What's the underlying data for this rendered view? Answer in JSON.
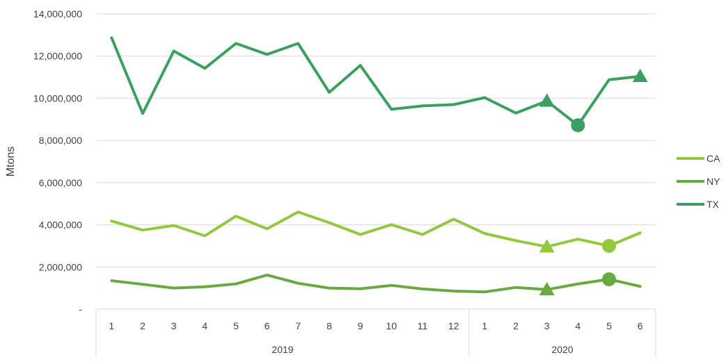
{
  "chart_data": {
    "type": "line",
    "ylabel": "Mtons",
    "ylim": [
      0,
      14000000
    ],
    "y_ticks": [
      {
        "value": 0,
        "label": "-"
      },
      {
        "value": 2000000,
        "label": "2,000,000"
      },
      {
        "value": 4000000,
        "label": "4,000,000"
      },
      {
        "value": 6000000,
        "label": "6,000,000"
      },
      {
        "value": 8000000,
        "label": "8,000,000"
      },
      {
        "value": 10000000,
        "label": "10,000,000"
      },
      {
        "value": 12000000,
        "label": "12,000,000"
      },
      {
        "value": 14000000,
        "label": "14,000,000"
      }
    ],
    "grid": true,
    "legend_position": "right",
    "categories": [
      "1",
      "2",
      "3",
      "4",
      "5",
      "6",
      "7",
      "8",
      "9",
      "10",
      "11",
      "12",
      "1",
      "2",
      "3",
      "4",
      "5",
      "6"
    ],
    "category_groups": [
      {
        "label": "2019",
        "count": 12
      },
      {
        "label": "2020",
        "count": 6
      }
    ],
    "series": [
      {
        "name": "CA",
        "color": "#92C83E",
        "values": [
          4180000,
          3750000,
          3970000,
          3480000,
          4410000,
          3810000,
          4610000,
          4100000,
          3540000,
          4010000,
          3540000,
          4270000,
          3590000,
          3250000,
          2960000,
          3320000,
          3000000,
          3620000
        ],
        "markers": [
          {
            "index": 14,
            "shape": "triangle"
          },
          {
            "index": 16,
            "shape": "circle"
          }
        ]
      },
      {
        "name": "NY",
        "color": "#6AA842",
        "values": [
          1350000,
          1180000,
          1000000,
          1060000,
          1200000,
          1620000,
          1230000,
          1000000,
          970000,
          1130000,
          960000,
          860000,
          820000,
          1030000,
          930000,
          1200000,
          1420000,
          1080000
        ],
        "markers": [
          {
            "index": 14,
            "shape": "triangle"
          },
          {
            "index": 16,
            "shape": "circle"
          }
        ]
      },
      {
        "name": "TX",
        "color": "#3B9F62",
        "values": [
          12870000,
          9280000,
          12240000,
          11420000,
          12600000,
          12080000,
          12600000,
          10280000,
          11560000,
          9480000,
          9640000,
          9700000,
          10030000,
          9300000,
          9870000,
          8720000,
          10880000,
          11040000
        ],
        "markers": [
          {
            "index": 14,
            "shape": "triangle"
          },
          {
            "index": 15,
            "shape": "circle"
          },
          {
            "index": 17,
            "shape": "triangle"
          }
        ]
      }
    ]
  }
}
